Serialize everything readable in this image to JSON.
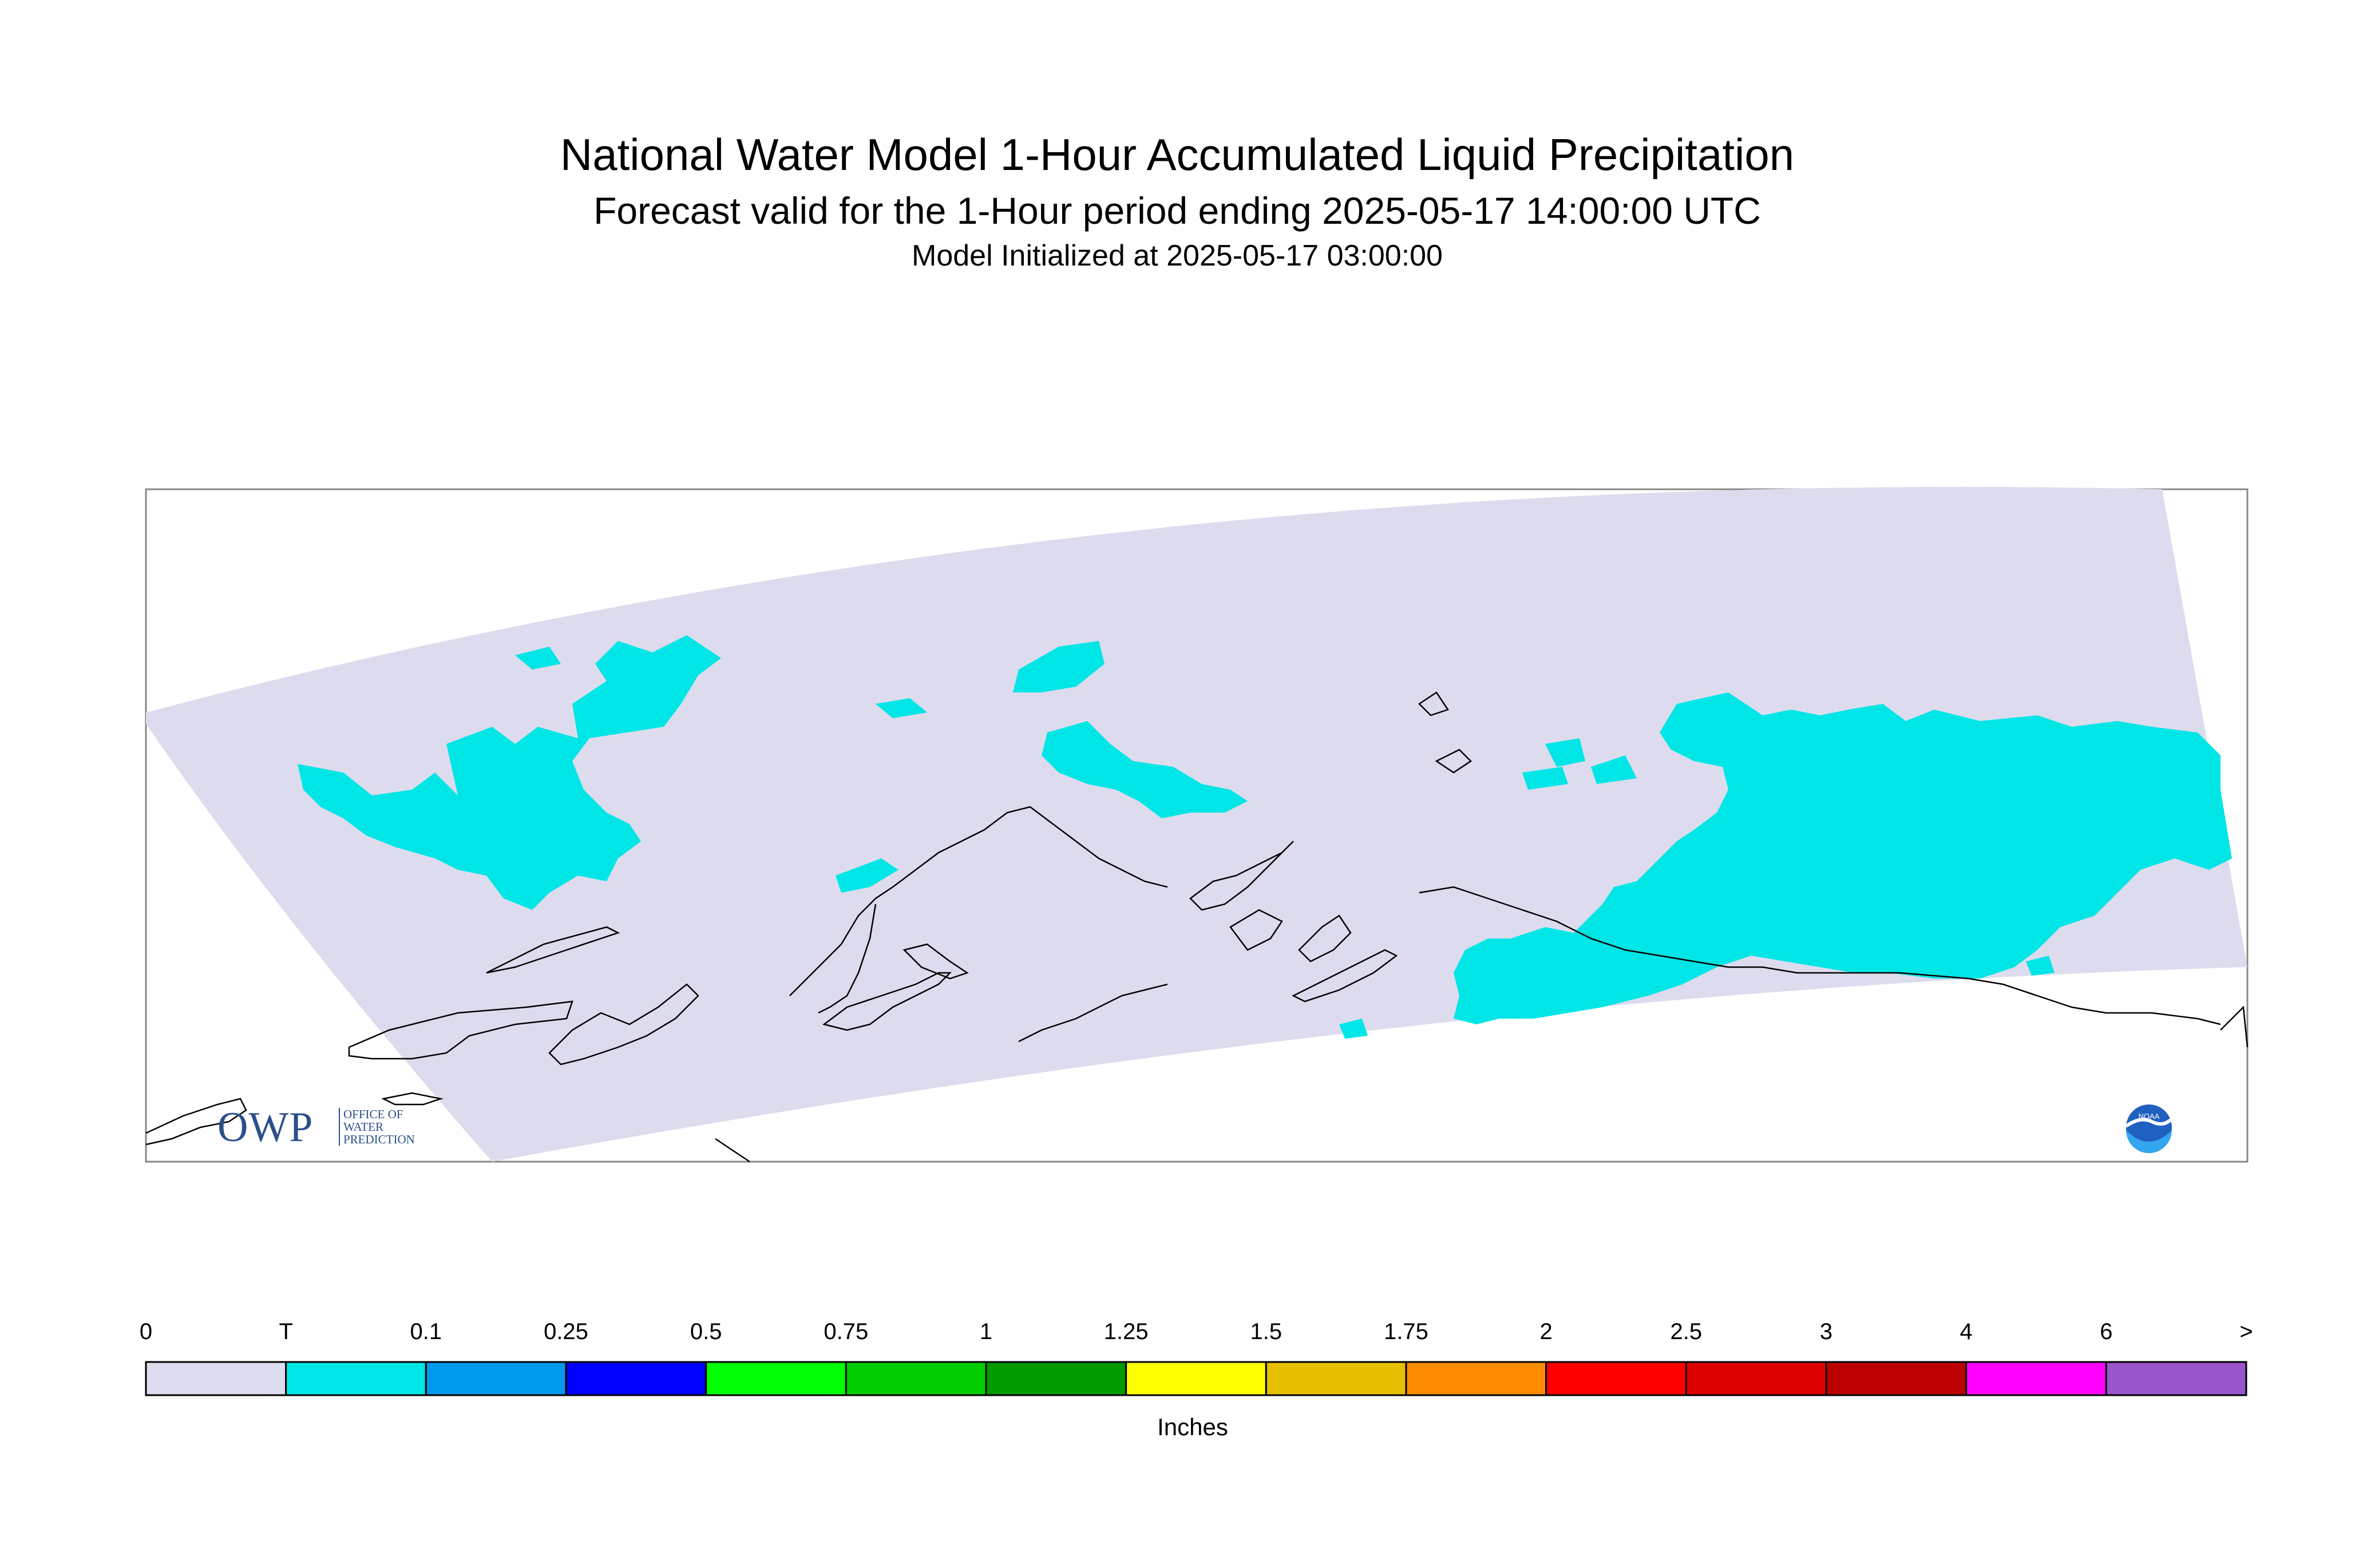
{
  "header": {
    "title": "National Water Model 1-Hour Accumulated Liquid Precipitation",
    "subtitle": "Forecast valid for the 1-Hour period ending 2025-05-17 14:00:00 UTC",
    "init": "Model Initialized at 2025-05-17 03:00:00"
  },
  "logos": {
    "owp_text": "OWP",
    "owp_line1": "OFFICE OF",
    "owp_line2": "WATER",
    "owp_line3": "PREDICTION"
  },
  "colors": {
    "domain": "#dcdcee",
    "trace": "#00e5e5",
    "coast": "#000000"
  },
  "legend": {
    "units": "Inches",
    "labels": [
      "0",
      "T",
      "0.1",
      "0.25",
      "0.5",
      "0.75",
      "1",
      "1.25",
      "1.5",
      "1.75",
      "2",
      "2.5",
      "3",
      "4",
      "6",
      ">"
    ],
    "colors": [
      "#dcdcee",
      "#00e5e5",
      "#0099ee",
      "#0000ff",
      "#00ff00",
      "#00cc00",
      "#009900",
      "#ffff00",
      "#e6c000",
      "#ff8c00",
      "#ff0000",
      "#dd0000",
      "#bb0000",
      "#ff00ff",
      "#9955cc"
    ]
  }
}
